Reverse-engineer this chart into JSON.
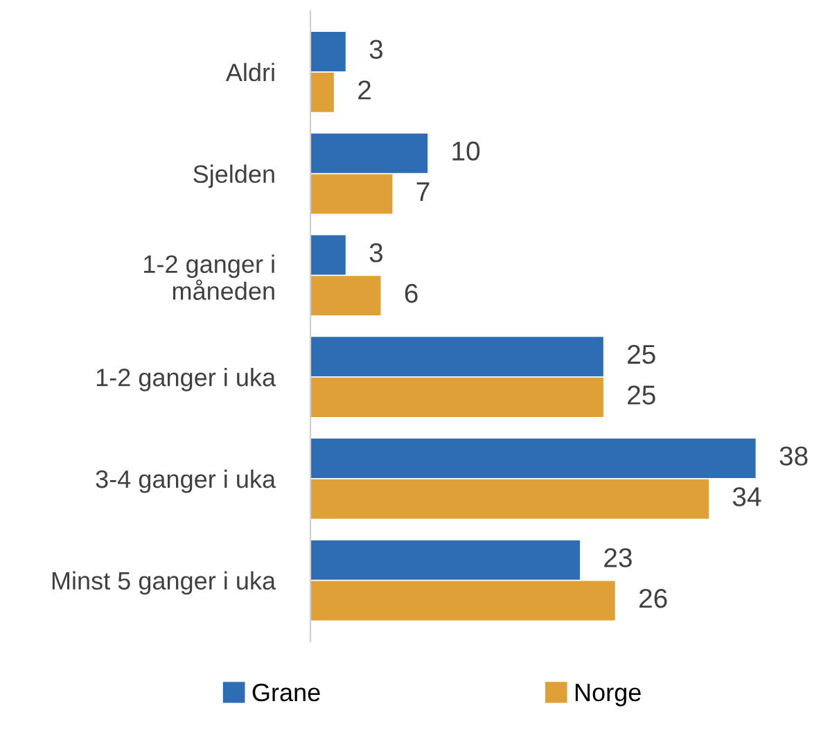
{
  "chart_data": {
    "type": "bar",
    "orientation": "horizontal",
    "categories": [
      "Aldri",
      "Sjelden",
      "1-2 ganger i\nmåneden",
      "1-2 ganger i uka",
      "3-4 ganger i uka",
      "Minst 5 ganger i uka"
    ],
    "series": [
      {
        "name": "Grane",
        "color": "#2e6db4",
        "values": [
          3,
          10,
          3,
          25,
          38,
          23
        ]
      },
      {
        "name": "Norge",
        "color": "#e0a038",
        "values": [
          2,
          7,
          6,
          25,
          34,
          26
        ]
      }
    ],
    "data_labels": true,
    "legend": "bottom",
    "grid": false
  }
}
